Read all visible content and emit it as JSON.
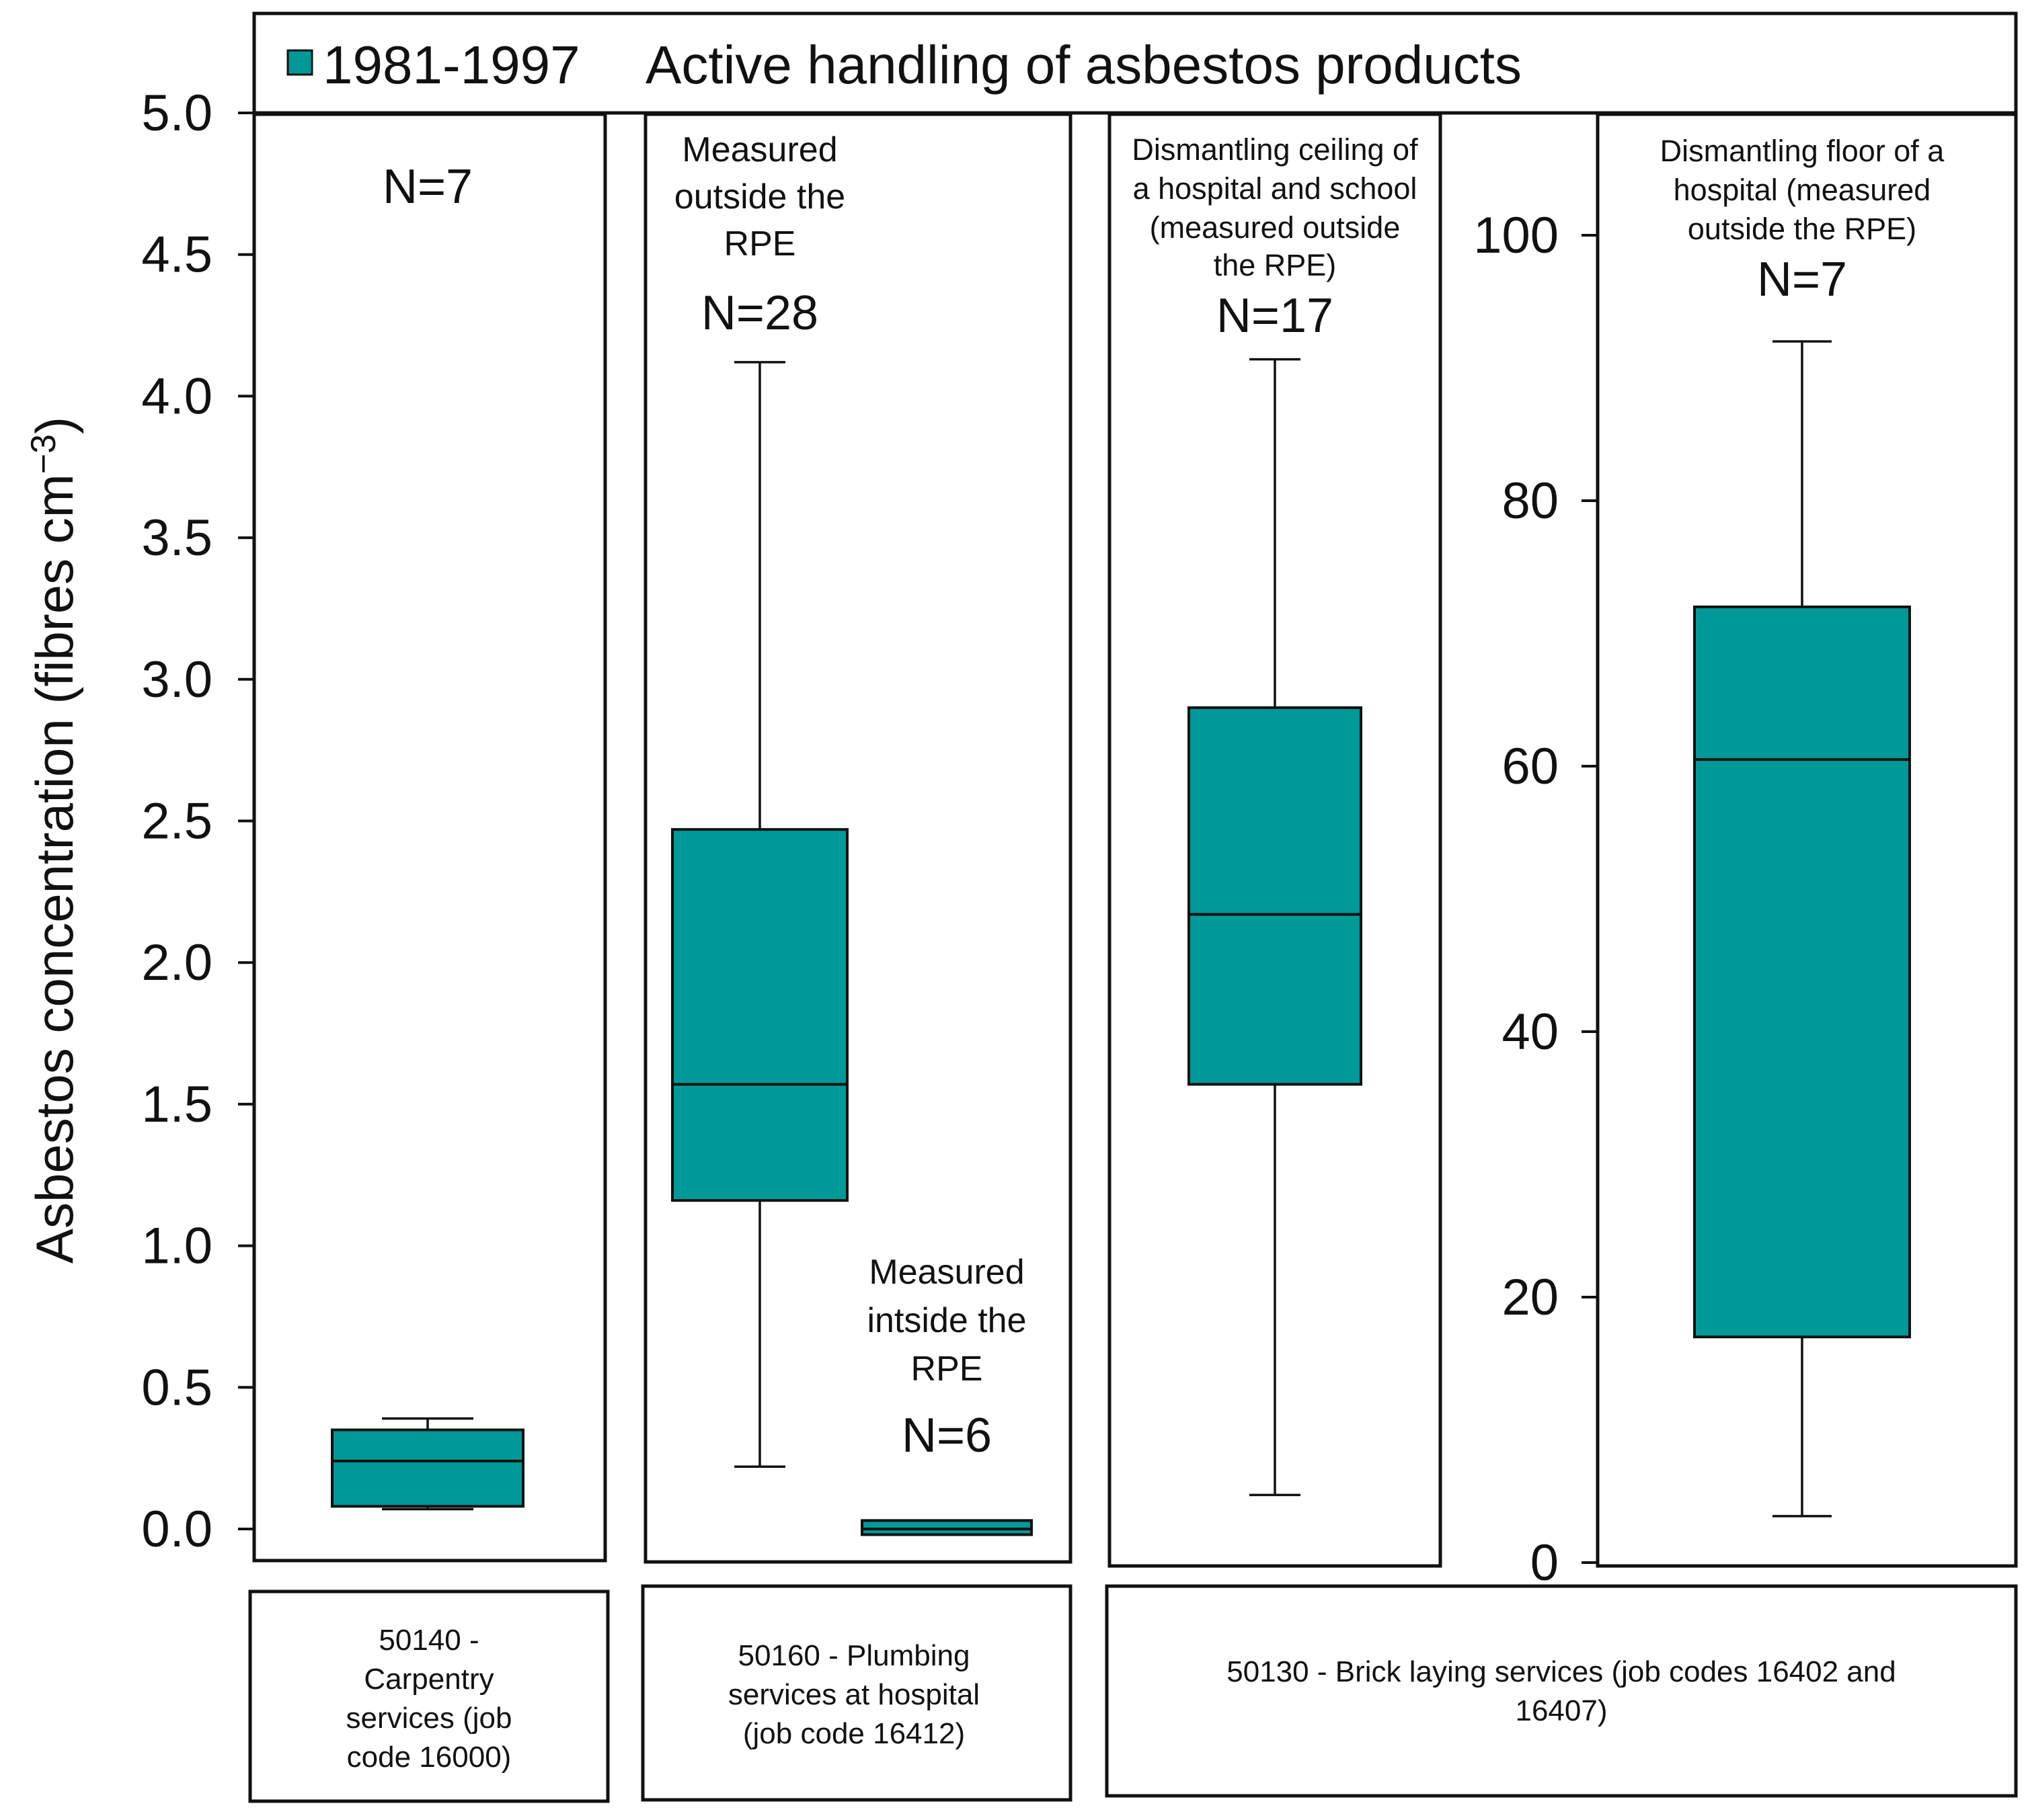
{
  "chart_data": {
    "type": "boxplot",
    "legend": {
      "label": "1981-1997",
      "title": "Active handling of asbestos products",
      "color": "#009999",
      "placement": "top"
    },
    "ylabel": "Asbestos concentration (fibres cm",
    "ylabel_sup": "−3",
    "left_axis": {
      "range": [
        0,
        5.0
      ],
      "ticks": [
        "0.0",
        "0.5",
        "1.0",
        "1.5",
        "2.0",
        "2.5",
        "3.0",
        "3.5",
        "4.0",
        "4.5",
        "5.0"
      ]
    },
    "right_axis": {
      "range": [
        0,
        110
      ],
      "ticks": [
        "0",
        "20",
        "40",
        "60",
        "80",
        "100"
      ]
    },
    "boxes": [
      {
        "id": "carpentry",
        "axis": "left",
        "n_label": "N=7",
        "annotation": [],
        "min": 0.07,
        "q1": 0.08,
        "median": 0.24,
        "q3": 0.35,
        "max": 0.39
      },
      {
        "id": "plumbing-outside",
        "axis": "left",
        "n_label": "N=28",
        "annotation": [
          "Measured",
          "outside the",
          "RPE"
        ],
        "min": 0.22,
        "q1": 1.16,
        "median": 1.57,
        "q3": 2.47,
        "max": 4.12
      },
      {
        "id": "plumbing-inside",
        "axis": "left",
        "n_label": "N=6",
        "annotation": [
          "Measured",
          "intside the",
          "RPE"
        ],
        "min": -0.02,
        "q1": -0.02,
        "median": 0.0,
        "q3": 0.03,
        "max": 0.03
      },
      {
        "id": "ceiling",
        "axis": "left",
        "n_label": "N=17",
        "annotation": [
          "Dismantling ceiling of",
          "a hospital and school",
          "(measured outside",
          "the RPE)"
        ],
        "min": 0.12,
        "q1": 1.57,
        "median": 2.17,
        "q3": 2.9,
        "max": 4.13
      },
      {
        "id": "floor",
        "axis": "right",
        "n_label": "N=7",
        "annotation": [
          "Dismantling floor of a",
          "hospital (measured",
          "outside the RPE)"
        ],
        "min": 3.5,
        "q1": 17.0,
        "median": 60.5,
        "q3": 72.0,
        "max": 92.0
      }
    ],
    "groups": [
      {
        "id": "g1",
        "lines": [
          "50140 -",
          "Carpentry",
          "services (job",
          "code 16000)"
        ]
      },
      {
        "id": "g2",
        "lines": [
          "50160 - Plumbing",
          "services at hospital",
          "(job code 16412)"
        ]
      },
      {
        "id": "g3",
        "lines": [
          "50130 - Brick laying services (job codes 16402 and",
          "16407)"
        ]
      }
    ]
  }
}
